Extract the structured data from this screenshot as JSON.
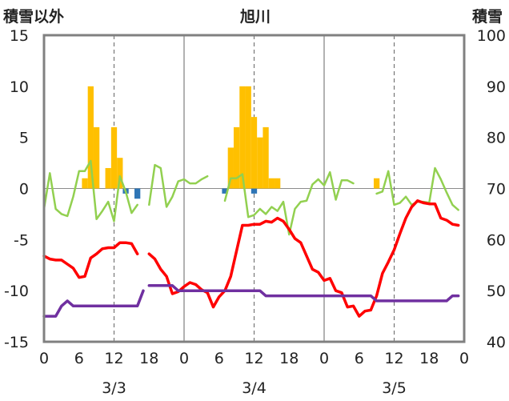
{
  "chart_data": {
    "type": "bar+line",
    "title": "旭川",
    "left_axis_label": "積雪以外",
    "right_axis_label": "積雪",
    "left_ylim": [
      -15,
      15
    ],
    "left_yticks": [
      "15",
      "10",
      "5",
      "0",
      "-5",
      "-10",
      "-15"
    ],
    "right_ylim": [
      40,
      100
    ],
    "right_yticks": [
      "100",
      "90",
      "80",
      "70",
      "60",
      "50",
      "40"
    ],
    "xlim": [
      0,
      72
    ],
    "x_tick_labels": [
      "0",
      "6",
      "12",
      "18",
      "0",
      "6",
      "12",
      "18",
      "0",
      "6",
      "12",
      "18",
      "0"
    ],
    "day_labels": [
      "3/3",
      "3/4",
      "3/5"
    ],
    "day_boundaries_hours": [
      24,
      48
    ],
    "noon_gridlines_hours": [
      12,
      36,
      60
    ],
    "colors": {
      "snowfall_bar": "#FFC000",
      "precip_bar": "#2E75B6",
      "temperature": "#FF0000",
      "wind": "#92D050",
      "snow_depth": "#7030A0",
      "gridline": "#7f7f7f",
      "frame": "#808080"
    },
    "series": [
      {
        "key": "snowfall",
        "type": "bar",
        "axis": "left",
        "points": [
          [
            7,
            1
          ],
          [
            8,
            10
          ],
          [
            9,
            6
          ],
          [
            11,
            2
          ],
          [
            12,
            6
          ],
          [
            13,
            3
          ],
          [
            32,
            4
          ],
          [
            33,
            6
          ],
          [
            34,
            10
          ],
          [
            35,
            10
          ],
          [
            36,
            7
          ],
          [
            37,
            5
          ],
          [
            38,
            6
          ],
          [
            39,
            1
          ],
          [
            40,
            1
          ],
          [
            57,
            1
          ]
        ]
      },
      {
        "key": "precip_blue",
        "type": "bar",
        "axis": "left",
        "points": [
          [
            14,
            -0.5
          ],
          [
            16,
            -1
          ],
          [
            31,
            -0.5
          ],
          [
            36,
            -0.5
          ]
        ]
      },
      {
        "key": "temperature",
        "type": "line",
        "axis": "left",
        "segments": [
          [
            [
              0,
              -6.6
            ],
            [
              1,
              -6.9
            ],
            [
              2,
              -7.0
            ],
            [
              3,
              -7.0
            ],
            [
              4,
              -7.4
            ],
            [
              5,
              -7.8
            ],
            [
              6,
              -8.7
            ],
            [
              7,
              -8.6
            ],
            [
              8,
              -6.8
            ],
            [
              9,
              -6.4
            ],
            [
              10,
              -5.9
            ],
            [
              11,
              -5.8
            ],
            [
              12,
              -5.8
            ],
            [
              13,
              -5.3
            ],
            [
              14,
              -5.3
            ],
            [
              15,
              -5.4
            ],
            [
              16,
              -6.4
            ]
          ],
          [
            [
              18,
              -6.4
            ],
            [
              19,
              -6.9
            ],
            [
              20,
              -7.9
            ],
            [
              21,
              -8.6
            ],
            [
              22,
              -10.3
            ],
            [
              23,
              -10.1
            ],
            [
              24,
              -9.6
            ],
            [
              25,
              -9.2
            ],
            [
              26,
              -9.4
            ],
            [
              27,
              -9.9
            ],
            [
              28,
              -10.2
            ],
            [
              29,
              -11.6
            ],
            [
              30,
              -10.6
            ],
            [
              31,
              -10.0
            ],
            [
              32,
              -8.6
            ],
            [
              33,
              -6.1
            ],
            [
              34,
              -3.6
            ],
            [
              35,
              -3.6
            ],
            [
              36,
              -3.5
            ],
            [
              37,
              -3.5
            ],
            [
              38,
              -3.2
            ],
            [
              39,
              -3.3
            ],
            [
              40,
              -2.9
            ],
            [
              41,
              -3.2
            ],
            [
              42,
              -4.0
            ],
            [
              43,
              -4.9
            ],
            [
              44,
              -5.3
            ],
            [
              45,
              -6.6
            ],
            [
              46,
              -7.9
            ],
            [
              47,
              -8.2
            ],
            [
              48,
              -9.0
            ],
            [
              49,
              -8.8
            ],
            [
              50,
              -10.0
            ],
            [
              51,
              -10.2
            ],
            [
              52,
              -11.6
            ],
            [
              53,
              -11.5
            ],
            [
              54,
              -12.5
            ],
            [
              55,
              -12.0
            ],
            [
              56,
              -11.9
            ],
            [
              57,
              -10.5
            ],
            [
              58,
              -8.3
            ],
            [
              59,
              -7.2
            ],
            [
              60,
              -6.0
            ],
            [
              61,
              -4.4
            ],
            [
              62,
              -2.9
            ],
            [
              63,
              -1.8
            ],
            [
              64,
              -1.2
            ],
            [
              65,
              -1.4
            ],
            [
              66,
              -1.5
            ],
            [
              67,
              -1.5
            ],
            [
              68,
              -2.9
            ],
            [
              69,
              -3.1
            ],
            [
              70,
              -3.5
            ],
            [
              71,
              -3.6
            ]
          ]
        ]
      },
      {
        "key": "wind",
        "type": "line",
        "axis": "left",
        "segments": [
          [
            [
              0,
              -2.0
            ],
            [
              1,
              1.5
            ],
            [
              2,
              -2.0
            ],
            [
              3,
              -2.5
            ],
            [
              4,
              -2.7
            ],
            [
              5,
              -0.8
            ],
            [
              6,
              1.7
            ],
            [
              7,
              1.7
            ],
            [
              8,
              2.7
            ],
            [
              9,
              -3.0
            ],
            [
              10,
              -2.2
            ],
            [
              11,
              -1.3
            ],
            [
              12,
              -3.2
            ],
            [
              13,
              1.2
            ],
            [
              14,
              -0.3
            ],
            [
              15,
              -2.4
            ],
            [
              16,
              -1.6
            ]
          ],
          [
            [
              18,
              -1.6
            ],
            [
              19,
              2.3
            ],
            [
              20,
              2.0
            ],
            [
              21,
              -1.8
            ],
            [
              22,
              -0.8
            ],
            [
              23,
              0.7
            ],
            [
              24,
              0.9
            ],
            [
              25,
              0.5
            ],
            [
              26,
              0.5
            ],
            [
              27,
              0.9
            ],
            [
              28,
              1.2
            ]
          ],
          [
            [
              31,
              -1.2
            ],
            [
              32,
              1.0
            ],
            [
              33,
              1.0
            ],
            [
              34,
              1.4
            ],
            [
              35,
              -2.8
            ],
            [
              36,
              -2.6
            ],
            [
              37,
              -2.0
            ],
            [
              38,
              -2.5
            ],
            [
              39,
              -1.8
            ],
            [
              40,
              -2.2
            ],
            [
              41,
              -1.3
            ],
            [
              42,
              -4.5
            ],
            [
              43,
              -2.0
            ],
            [
              44,
              -1.3
            ],
            [
              45,
              -1.2
            ],
            [
              46,
              0.4
            ],
            [
              47,
              0.9
            ],
            [
              48,
              0.3
            ],
            [
              49,
              1.6
            ],
            [
              50,
              -1.1
            ],
            [
              51,
              0.8
            ],
            [
              52,
              0.8
            ],
            [
              53,
              0.5
            ]
          ],
          [
            [
              57,
              -0.5
            ],
            [
              58,
              -0.3
            ],
            [
              59,
              1.7
            ],
            [
              60,
              -1.6
            ],
            [
              61,
              -1.4
            ],
            [
              62,
              -0.8
            ],
            [
              63,
              -1.6
            ],
            [
              64,
              -1.3
            ],
            [
              65,
              -1.3
            ],
            [
              66,
              -1.4
            ],
            [
              67,
              2.0
            ],
            [
              68,
              0.9
            ],
            [
              69,
              -0.4
            ],
            [
              70,
              -1.6
            ],
            [
              71,
              -2.1
            ]
          ]
        ]
      },
      {
        "key": "snow_depth",
        "type": "line",
        "axis": "right",
        "segments": [
          [
            [
              0,
              45
            ],
            [
              2,
              45
            ],
            [
              3,
              47
            ],
            [
              4,
              48
            ],
            [
              5,
              47
            ],
            [
              16,
              47
            ],
            [
              17,
              50
            ]
          ],
          [
            [
              18,
              51
            ],
            [
              22,
              51
            ],
            [
              23,
              50
            ],
            [
              37,
              50
            ],
            [
              38,
              49
            ],
            [
              56,
              49
            ],
            [
              57,
              48
            ],
            [
              69,
              48
            ],
            [
              70,
              49
            ],
            [
              71,
              49
            ]
          ]
        ]
      }
    ]
  }
}
